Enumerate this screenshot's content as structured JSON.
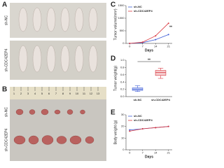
{
  "figure": {
    "panel_labels": [
      "A",
      "B",
      "C",
      "D",
      "E"
    ],
    "photo_a_groups": [
      "sh-NC",
      "sh-CDC42EP4"
    ],
    "photo_b_groups": [
      "sh-NC",
      "sh-CDC42EP4"
    ],
    "ruler_marks": [
      "1",
      "2",
      "3",
      "4",
      "5",
      "6",
      "7",
      "8",
      "9",
      "10",
      "11",
      "12",
      "13"
    ]
  },
  "chart_data": [
    {
      "type": "line",
      "ylabel": "Tumor volume(mm³)",
      "xlabel": "Days",
      "x": [
        0,
        7,
        14,
        21
      ],
      "xlim": [
        -2,
        23
      ],
      "xticks": [
        0,
        7,
        14,
        21
      ],
      "ylim": [
        0,
        1500
      ],
      "yticks": [
        0,
        500,
        1000,
        1500
      ],
      "series": [
        {
          "name": "sh-NC",
          "color": "#3b5bd6",
          "values": [
            0,
            30,
            150,
            350
          ]
        },
        {
          "name": "sh-CDC42EP4",
          "color": "#d9363e",
          "values": [
            0,
            50,
            300,
            800
          ]
        }
      ],
      "annotation": "**",
      "legend": "upper left"
    },
    {
      "type": "box",
      "ylabel": "Tumor weight(g)",
      "ylim": [
        0,
        1
      ],
      "yticks": [
        {
          "value": 0,
          "label": "0.0"
        },
        {
          "value": 0.2,
          "label": "0.2"
        },
        {
          "value": 0.4,
          "label": "0.4"
        },
        {
          "value": 0.6,
          "label": "0.6"
        },
        {
          "value": 0.8,
          "label": "0.8"
        },
        {
          "value": 1,
          "label": "1.0"
        }
      ],
      "boxes": [
        {
          "name": "sh-NC",
          "color": "#3b5bd6",
          "min": 0.14,
          "q1": 0.17,
          "median": 0.2,
          "q3": 0.24,
          "max": 0.3
        },
        {
          "name": "sh-CDC42EP4",
          "color": "#d9363e",
          "min": 0.5,
          "q1": 0.58,
          "median": 0.66,
          "q3": 0.72,
          "max": 0.78
        }
      ],
      "annotation": "**"
    },
    {
      "type": "line",
      "ylabel": "Body weight (g)",
      "xlabel": "Days",
      "x": [
        0,
        7,
        14,
        21
      ],
      "xlim": [
        -2,
        23
      ],
      "xticks": [
        0,
        7,
        14,
        21
      ],
      "ylim": [
        0,
        30
      ],
      "yticks": [
        0,
        10,
        20,
        30
      ],
      "series": [
        {
          "name": "sh-NC",
          "color": "#3b5bd6",
          "values": [
            17,
            18,
            19,
            20
          ]
        },
        {
          "name": "sh-CDC42EP4",
          "color": "#d9363e",
          "values": [
            16,
            18,
            19,
            20
          ]
        }
      ],
      "legend": "upper left"
    }
  ]
}
